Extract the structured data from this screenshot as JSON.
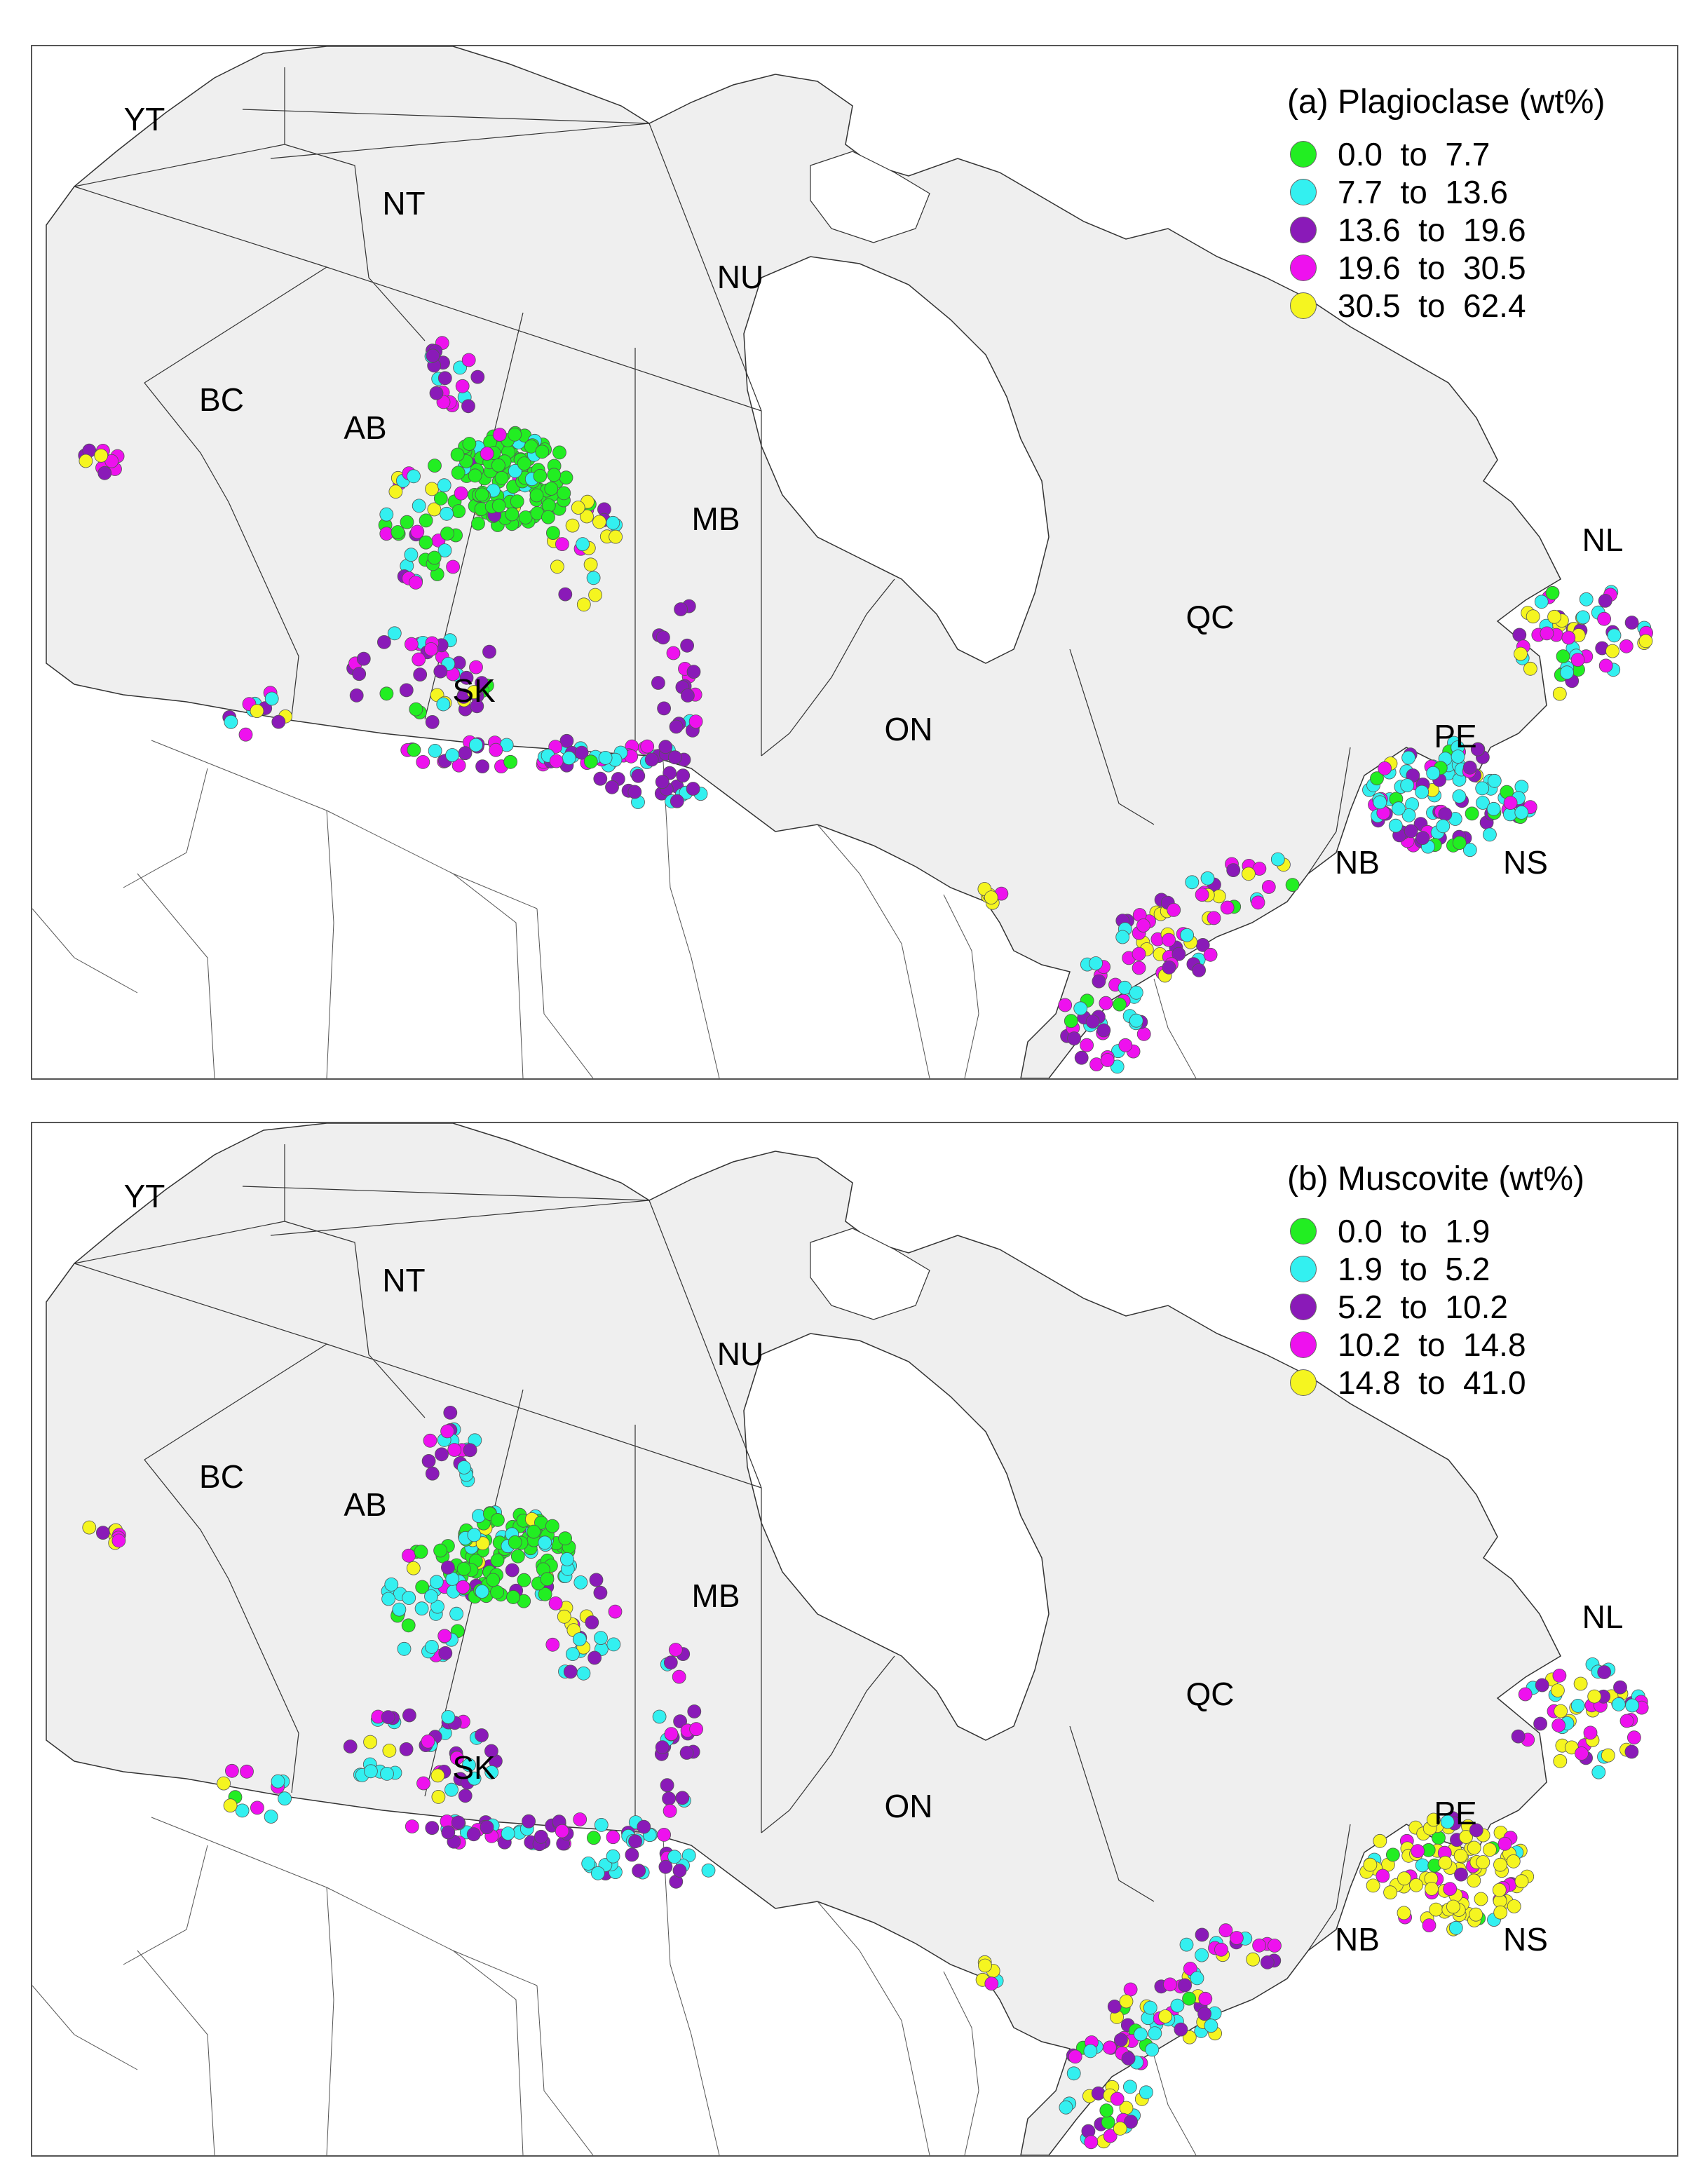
{
  "colors": {
    "land": "#efefef",
    "water": "#ffffff",
    "border": "#333333",
    "bin1": "#22ee22",
    "bin2": "#33f0f0",
    "bin3": "#8a1ab8",
    "bin4": "#ee11ee",
    "bin5": "#f5f520"
  },
  "province_labels": [
    "YT",
    "NT",
    "NU",
    "BC",
    "AB",
    "SK",
    "MB",
    "ON",
    "QC",
    "NL",
    "PE",
    "NB",
    "NS"
  ],
  "panels": [
    {
      "title": "(a) Plagioclase (wt%)",
      "legend": [
        {
          "label": "0.0  to  7.7",
          "color_key": "bin1"
        },
        {
          "label": "7.7  to  13.6",
          "color_key": "bin2"
        },
        {
          "label": "13.6  to  19.6",
          "color_key": "bin3"
        },
        {
          "label": "19.6  to  30.5",
          "color_key": "bin4"
        },
        {
          "label": "30.5  to  62.4",
          "color_key": "bin5"
        }
      ]
    },
    {
      "title": "(b) Muscovite (wt%)",
      "legend": [
        {
          "label": "0.0  to  1.9",
          "color_key": "bin1"
        },
        {
          "label": "1.9  to  5.2",
          "color_key": "bin2"
        },
        {
          "label": "5.2  to  10.2",
          "color_key": "bin3"
        },
        {
          "label": "10.2  to  14.8",
          "color_key": "bin4"
        },
        {
          "label": "14.8  to  41.0",
          "color_key": "bin5"
        }
      ]
    }
  ]
}
